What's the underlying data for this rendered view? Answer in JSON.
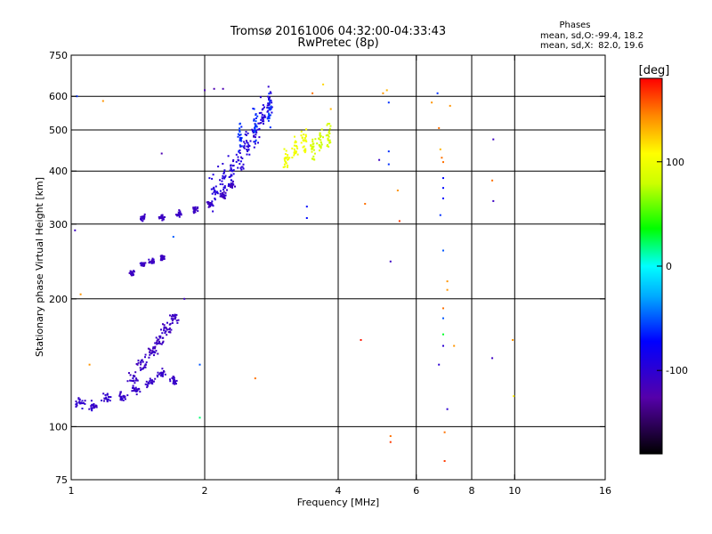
{
  "chart_data": {
    "type": "scatter",
    "title": "Tromsø 20161006 04:32:00-04:33:43",
    "subtitle": "RwPretec (8p)",
    "xlabel": "Frequency [MHz]",
    "ylabel": "Stationary phase Virtual Height [km]",
    "x_scale": "log",
    "y_scale": "log",
    "xlim": [
      1,
      16
    ],
    "ylim": [
      75,
      750
    ],
    "x_ticks": [
      1,
      2,
      4,
      6,
      8,
      10,
      16
    ],
    "y_ticks": [
      75,
      100,
      200,
      300,
      400,
      500,
      600,
      750
    ],
    "x_grid": [
      2,
      4,
      6,
      8,
      10
    ],
    "y_grid": [
      100,
      200,
      300,
      400,
      500,
      600
    ],
    "grid": true,
    "phase_stats": {
      "heading": "Phases",
      "o_label": "mean, sd,O:",
      "o_values": "-99.4, 18.2",
      "x_label": "mean, sd,X:",
      "x_values": "82.0, 19.6"
    },
    "colorbar": {
      "unit": "[deg]",
      "range": [
        -180,
        180
      ],
      "ticks": [
        -100,
        0,
        100
      ]
    },
    "clusters": [
      {
        "x": [
          1.05,
          1.12,
          1.2,
          1.3,
          1.4,
          1.5,
          1.6,
          1.7
        ],
        "y": [
          114,
          112,
          117,
          118,
          122,
          126,
          133,
          128
        ],
        "x_spread": 0.035,
        "y_spread": 0.035,
        "phase": -105,
        "phase_sd": 12
      },
      {
        "x": [
          1.38,
          1.45,
          1.52,
          1.58,
          1.64,
          1.7
        ],
        "y": [
          130,
          140,
          150,
          160,
          170,
          180
        ],
        "x_spread": 0.04,
        "y_spread": 0.05,
        "phase": -110,
        "phase_sd": 12
      },
      {
        "x": [
          1.37,
          1.45,
          1.52,
          1.6
        ],
        "y": [
          230,
          240,
          245,
          250
        ],
        "x_spread": 0.02,
        "y_spread": 0.02,
        "phase": -110,
        "phase_sd": 10
      },
      {
        "x": [
          1.45,
          1.6,
          1.75,
          1.9,
          2.05,
          2.2,
          2.3
        ],
        "y": [
          310,
          312,
          318,
          325,
          335,
          350,
          370
        ],
        "x_spread": 0.02,
        "y_spread": 0.025,
        "phase": -110,
        "phase_sd": 10
      },
      {
        "x": [
          2.1,
          2.2,
          2.3,
          2.4,
          2.5,
          2.6,
          2.7,
          2.8
        ],
        "y": [
          360,
          380,
          400,
          430,
          460,
          500,
          540,
          580
        ],
        "x_spread": 0.03,
        "y_spread": 0.12,
        "phase": -95,
        "phase_sd": 12
      },
      {
        "x": [
          2.4,
          2.6,
          2.8
        ],
        "y": [
          480,
          520,
          560
        ],
        "x_spread": 0.015,
        "y_spread": 0.12,
        "phase": -60,
        "phase_sd": 12
      },
      {
        "x": [
          3.05,
          3.2,
          3.35
        ],
        "y": [
          430,
          450,
          470
        ],
        "x_spread": 0.02,
        "y_spread": 0.1,
        "phase": 100,
        "phase_sd": 10
      },
      {
        "x": [
          3.5,
          3.65,
          3.8
        ],
        "y": [
          450,
          470,
          490
        ],
        "x_spread": 0.02,
        "y_spread": 0.1,
        "phase": 85,
        "phase_sd": 10
      }
    ],
    "sparse_points": [
      {
        "x": 1.03,
        "y": 600,
        "phase": -60
      },
      {
        "x": 1.18,
        "y": 585,
        "phase": 140
      },
      {
        "x": 1.02,
        "y": 290,
        "phase": -110
      },
      {
        "x": 1.05,
        "y": 205,
        "phase": 140
      },
      {
        "x": 1.1,
        "y": 140,
        "phase": 140
      },
      {
        "x": 1.6,
        "y": 440,
        "phase": -120
      },
      {
        "x": 1.7,
        "y": 280,
        "phase": -50
      },
      {
        "x": 1.8,
        "y": 200,
        "phase": -110
      },
      {
        "x": 1.95,
        "y": 105,
        "phase": 20
      },
      {
        "x": 1.95,
        "y": 140,
        "phase": -50
      },
      {
        "x": 2.0,
        "y": 620,
        "phase": -120
      },
      {
        "x": 2.1,
        "y": 625,
        "phase": -120
      },
      {
        "x": 2.2,
        "y": 625,
        "phase": -120
      },
      {
        "x": 2.6,
        "y": 130,
        "phase": 150
      },
      {
        "x": 3.4,
        "y": 330,
        "phase": -70
      },
      {
        "x": 3.4,
        "y": 310,
        "phase": -70
      },
      {
        "x": 3.5,
        "y": 610,
        "phase": 150
      },
      {
        "x": 3.7,
        "y": 640,
        "phase": 120
      },
      {
        "x": 3.85,
        "y": 560,
        "phase": 130
      },
      {
        "x": 4.5,
        "y": 160,
        "phase": 175
      },
      {
        "x": 4.6,
        "y": 335,
        "phase": 150
      },
      {
        "x": 4.95,
        "y": 425,
        "phase": -110
      },
      {
        "x": 5.05,
        "y": 610,
        "phase": 140
      },
      {
        "x": 5.15,
        "y": 620,
        "phase": 130
      },
      {
        "x": 5.2,
        "y": 580,
        "phase": -60
      },
      {
        "x": 5.2,
        "y": 445,
        "phase": -60
      },
      {
        "x": 5.2,
        "y": 415,
        "phase": -60
      },
      {
        "x": 5.25,
        "y": 245,
        "phase": -110
      },
      {
        "x": 5.25,
        "y": 95,
        "phase": 150
      },
      {
        "x": 5.25,
        "y": 92,
        "phase": 165
      },
      {
        "x": 5.45,
        "y": 360,
        "phase": 140
      },
      {
        "x": 5.5,
        "y": 305,
        "phase": 165
      },
      {
        "x": 6.5,
        "y": 580,
        "phase": 140
      },
      {
        "x": 6.7,
        "y": 610,
        "phase": -60
      },
      {
        "x": 6.75,
        "y": 505,
        "phase": 150
      },
      {
        "x": 6.8,
        "y": 450,
        "phase": 130
      },
      {
        "x": 6.85,
        "y": 430,
        "phase": 150
      },
      {
        "x": 6.9,
        "y": 420,
        "phase": 150
      },
      {
        "x": 6.9,
        "y": 385,
        "phase": -70
      },
      {
        "x": 6.9,
        "y": 365,
        "phase": -70
      },
      {
        "x": 6.9,
        "y": 345,
        "phase": -70
      },
      {
        "x": 6.8,
        "y": 315,
        "phase": -60
      },
      {
        "x": 6.9,
        "y": 260,
        "phase": -50
      },
      {
        "x": 7.05,
        "y": 220,
        "phase": 140
      },
      {
        "x": 7.05,
        "y": 210,
        "phase": 140
      },
      {
        "x": 6.9,
        "y": 190,
        "phase": 150
      },
      {
        "x": 6.9,
        "y": 180,
        "phase": -50
      },
      {
        "x": 6.9,
        "y": 165,
        "phase": 30
      },
      {
        "x": 6.9,
        "y": 155,
        "phase": -100
      },
      {
        "x": 6.75,
        "y": 140,
        "phase": -100
      },
      {
        "x": 7.05,
        "y": 110,
        "phase": -100
      },
      {
        "x": 6.95,
        "y": 97,
        "phase": 150
      },
      {
        "x": 6.95,
        "y": 83,
        "phase": 165
      },
      {
        "x": 7.15,
        "y": 570,
        "phase": 140
      },
      {
        "x": 7.3,
        "y": 155,
        "phase": 140
      },
      {
        "x": 8.95,
        "y": 475,
        "phase": -110
      },
      {
        "x": 8.9,
        "y": 380,
        "phase": 150
      },
      {
        "x": 8.95,
        "y": 340,
        "phase": -110
      },
      {
        "x": 8.9,
        "y": 145,
        "phase": -110
      },
      {
        "x": 9.9,
        "y": 160,
        "phase": 140
      },
      {
        "x": 9.95,
        "y": 118,
        "phase": 115
      }
    ]
  }
}
